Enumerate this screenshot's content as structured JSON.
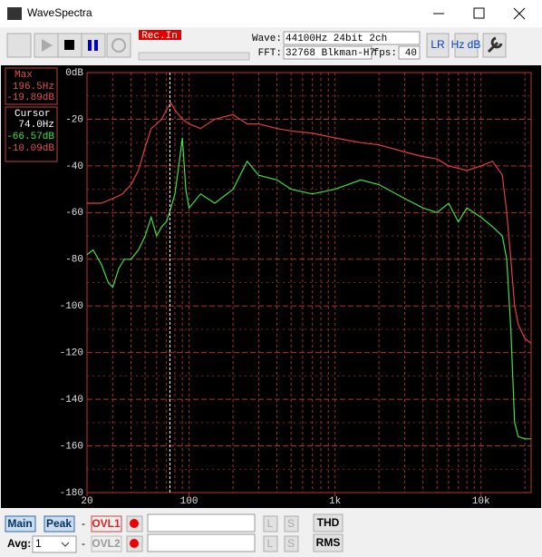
{
  "window": {
    "title": "WaveSpectra"
  },
  "toolbar": {
    "rec_label": "Rec.In",
    "wave_label": "Wave:",
    "wave_value": "44100Hz 24bit 2ch",
    "fft_label": "FFT:",
    "fft_value": "32768 Blkman-H7",
    "fps_label": "fps:",
    "fps_value": "40",
    "lr_icon": "LR",
    "hzdb_icon": "Hz dB"
  },
  "readouts": {
    "max_title": "Max",
    "max_freq": "196.5Hz",
    "max_level": "-19.89dB",
    "cursor_title": "Cursor",
    "cursor_freq": "74.0Hz",
    "cursor_level_green": "-66.57dB",
    "cursor_level_red": "-10.09dB"
  },
  "bottom": {
    "main": "Main",
    "peak": "Peak",
    "dash1": "-",
    "ovl1": "OVL1",
    "l1": "L",
    "s1": "S",
    "thd": "THD",
    "avg": "Avg:",
    "avg_value": "1",
    "dash2": "-",
    "ovl2": "OVL2",
    "l2": "L",
    "s2": "S",
    "rms": "RMS"
  },
  "chart_data": {
    "type": "line",
    "log_x": true,
    "grid": true,
    "xlim": [
      20,
      22050
    ],
    "ylim": [
      -180,
      0
    ],
    "xticks": [
      20,
      100,
      {
        "value": 1000,
        "label": "1k"
      },
      {
        "value": 10000,
        "label": "10k"
      }
    ],
    "xgrid": [
      20,
      30,
      40,
      50,
      60,
      70,
      80,
      90,
      100,
      200,
      300,
      400,
      500,
      600,
      700,
      800,
      900,
      1000,
      2000,
      3000,
      4000,
      5000,
      6000,
      7000,
      8000,
      9000,
      10000,
      20000
    ],
    "yticks": [
      {
        "value": 0,
        "label": "0dB"
      },
      -20,
      -40,
      -60,
      -80,
      -100,
      -120,
      -140,
      -160,
      -180
    ],
    "yminor": [
      -10,
      -30,
      -50,
      -70,
      -90,
      -110,
      -130,
      -150,
      -170
    ],
    "cursor": {
      "value": 74.0,
      "label": "74.0Hz"
    },
    "series": [
      {
        "color": "#e04040",
        "x": [
          20,
          25,
          30,
          35,
          40,
          45,
          50,
          55,
          60,
          65,
          70,
          75,
          80,
          90,
          100,
          120,
          150,
          200,
          250,
          300,
          400,
          500,
          700,
          1000,
          1500,
          2000,
          3000,
          4000,
          5000,
          6000,
          7000,
          8000,
          10000,
          12000,
          14000,
          15000,
          16000,
          17000,
          18000,
          20000,
          22050
        ],
        "values": [
          -56,
          -56,
          -54,
          -52,
          -48,
          -42,
          -32,
          -24,
          -22,
          -20,
          -16,
          -13,
          -16,
          -20,
          -22,
          -24,
          -20,
          -18,
          -22,
          -22,
          -24,
          -25,
          -26,
          -28,
          -30,
          -31,
          -34,
          -36,
          -37,
          -40,
          -41,
          -42,
          -40,
          -38,
          -44,
          -60,
          -80,
          -100,
          -108,
          -114,
          -116
        ]
      },
      {
        "color": "#40e040",
        "x": [
          20,
          22,
          25,
          28,
          30,
          33,
          36,
          40,
          45,
          50,
          55,
          60,
          65,
          70,
          75,
          80,
          85,
          90,
          95,
          100,
          120,
          150,
          200,
          250,
          300,
          400,
          500,
          700,
          1000,
          1500,
          2000,
          3000,
          4000,
          5000,
          6000,
          7000,
          8000,
          10000,
          12000,
          14000,
          15000,
          16000,
          17000,
          18000,
          20000,
          22050
        ],
        "values": [
          -78,
          -76,
          -82,
          -90,
          -92,
          -84,
          -80,
          -80,
          -76,
          -70,
          -62,
          -70,
          -66,
          -64,
          -58,
          -52,
          -40,
          -28,
          -50,
          -58,
          -52,
          -56,
          -50,
          -38,
          -44,
          -46,
          -50,
          -52,
          -50,
          -46,
          -48,
          -54,
          -58,
          -60,
          -56,
          -64,
          -58,
          -62,
          -66,
          -70,
          -80,
          -110,
          -150,
          -156,
          -157,
          -157
        ]
      }
    ]
  }
}
